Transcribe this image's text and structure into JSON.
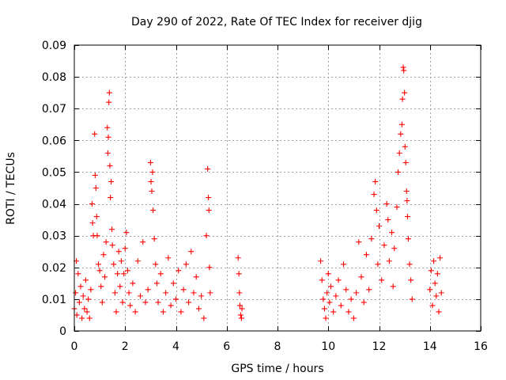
{
  "chart_data": {
    "type": "scatter",
    "title": "Day 290 of 2022, Rate Of TEC Index for receiver djig",
    "xlabel": "GPS time / hours",
    "ylabel": "ROTI / TECUs",
    "xlim": [
      0,
      16
    ],
    "ylim": [
      0,
      0.09
    ],
    "xticks": [
      0,
      2,
      4,
      6,
      8,
      10,
      12,
      14,
      16
    ],
    "xtick_labels": [
      "0",
      "2",
      "4",
      "6",
      "8",
      "10",
      "12",
      "14",
      "16"
    ],
    "yticks": [
      0,
      0.01,
      0.02,
      0.03,
      0.04,
      0.05,
      0.06,
      0.07,
      0.08,
      0.09
    ],
    "ytick_labels": [
      "0",
      "0.01",
      "0.02",
      "0.03",
      "0.04",
      "0.05",
      "0.06",
      "0.07",
      "0.08",
      "0.09"
    ],
    "grid": true,
    "marker": "+",
    "marker_color": "#ff0000",
    "series": [
      {
        "name": "ROTI",
        "points": [
          [
            0.0,
            0.007
          ],
          [
            0.05,
            0.012
          ],
          [
            0.08,
            0.022
          ],
          [
            0.1,
            0.005
          ],
          [
            0.15,
            0.018
          ],
          [
            0.2,
            0.009
          ],
          [
            0.25,
            0.014
          ],
          [
            0.3,
            0.004
          ],
          [
            0.35,
            0.011
          ],
          [
            0.4,
            0.007
          ],
          [
            0.45,
            0.016
          ],
          [
            0.5,
            0.006
          ],
          [
            0.55,
            0.01
          ],
          [
            0.6,
            0.004
          ],
          [
            0.65,
            0.013
          ],
          [
            0.7,
            0.04
          ],
          [
            0.72,
            0.034
          ],
          [
            0.75,
            0.03
          ],
          [
            0.8,
            0.062
          ],
          [
            0.82,
            0.049
          ],
          [
            0.85,
            0.045
          ],
          [
            0.88,
            0.036
          ],
          [
            0.9,
            0.03
          ],
          [
            0.95,
            0.021
          ],
          [
            1.0,
            0.019
          ],
          [
            1.05,
            0.014
          ],
          [
            1.1,
            0.009
          ],
          [
            1.15,
            0.024
          ],
          [
            1.2,
            0.017
          ],
          [
            1.25,
            0.028
          ],
          [
            1.3,
            0.064
          ],
          [
            1.32,
            0.056
          ],
          [
            1.34,
            0.061
          ],
          [
            1.36,
            0.072
          ],
          [
            1.38,
            0.075
          ],
          [
            1.4,
            0.052
          ],
          [
            1.42,
            0.042
          ],
          [
            1.45,
            0.047
          ],
          [
            1.48,
            0.032
          ],
          [
            1.5,
            0.027
          ],
          [
            1.55,
            0.021
          ],
          [
            1.6,
            0.012
          ],
          [
            1.65,
            0.006
          ],
          [
            1.7,
            0.018
          ],
          [
            1.75,
            0.025
          ],
          [
            1.8,
            0.014
          ],
          [
            1.85,
            0.022
          ],
          [
            1.9,
            0.009
          ],
          [
            1.95,
            0.018
          ],
          [
            2.0,
            0.026
          ],
          [
            2.05,
            0.031
          ],
          [
            2.1,
            0.019
          ],
          [
            2.15,
            0.012
          ],
          [
            2.2,
            0.008
          ],
          [
            2.3,
            0.015
          ],
          [
            2.4,
            0.006
          ],
          [
            2.5,
            0.022
          ],
          [
            2.6,
            0.011
          ],
          [
            2.7,
            0.028
          ],
          [
            2.8,
            0.009
          ],
          [
            2.9,
            0.013
          ],
          [
            3.0,
            0.053
          ],
          [
            3.02,
            0.047
          ],
          [
            3.05,
            0.044
          ],
          [
            3.08,
            0.05
          ],
          [
            3.1,
            0.038
          ],
          [
            3.15,
            0.029
          ],
          [
            3.2,
            0.021
          ],
          [
            3.25,
            0.015
          ],
          [
            3.3,
            0.009
          ],
          [
            3.4,
            0.018
          ],
          [
            3.5,
            0.006
          ],
          [
            3.6,
            0.012
          ],
          [
            3.7,
            0.023
          ],
          [
            3.8,
            0.008
          ],
          [
            3.9,
            0.015
          ],
          [
            4.0,
            0.01
          ],
          [
            4.1,
            0.019
          ],
          [
            4.2,
            0.006
          ],
          [
            4.3,
            0.013
          ],
          [
            4.4,
            0.021
          ],
          [
            4.5,
            0.009
          ],
          [
            4.6,
            0.025
          ],
          [
            4.7,
            0.012
          ],
          [
            4.8,
            0.017
          ],
          [
            4.9,
            0.007
          ],
          [
            5.0,
            0.011
          ],
          [
            5.1,
            0.004
          ],
          [
            5.2,
            0.03
          ],
          [
            5.25,
            0.051
          ],
          [
            5.28,
            0.042
          ],
          [
            5.3,
            0.038
          ],
          [
            5.32,
            0.02
          ],
          [
            5.35,
            0.012
          ],
          [
            6.45,
            0.023
          ],
          [
            6.48,
            0.018
          ],
          [
            6.5,
            0.012
          ],
          [
            6.52,
            0.008
          ],
          [
            6.55,
            0.005
          ],
          [
            6.58,
            0.004
          ],
          [
            6.6,
            0.007
          ],
          [
            9.7,
            0.022
          ],
          [
            9.75,
            0.016
          ],
          [
            9.8,
            0.01
          ],
          [
            9.85,
            0.007
          ],
          [
            9.9,
            0.004
          ],
          [
            9.95,
            0.012
          ],
          [
            10.0,
            0.018
          ],
          [
            10.05,
            0.009
          ],
          [
            10.1,
            0.014
          ],
          [
            10.2,
            0.006
          ],
          [
            10.3,
            0.011
          ],
          [
            10.4,
            0.016
          ],
          [
            10.5,
            0.008
          ],
          [
            10.6,
            0.021
          ],
          [
            10.7,
            0.013
          ],
          [
            10.8,
            0.006
          ],
          [
            10.9,
            0.01
          ],
          [
            11.0,
            0.004
          ],
          [
            11.1,
            0.012
          ],
          [
            11.2,
            0.028
          ],
          [
            11.3,
            0.017
          ],
          [
            11.4,
            0.009
          ],
          [
            11.5,
            0.024
          ],
          [
            11.6,
            0.013
          ],
          [
            11.7,
            0.029
          ],
          [
            11.8,
            0.043
          ],
          [
            11.85,
            0.047
          ],
          [
            11.9,
            0.038
          ],
          [
            11.95,
            0.021
          ],
          [
            12.0,
            0.033
          ],
          [
            12.1,
            0.016
          ],
          [
            12.2,
            0.027
          ],
          [
            12.3,
            0.04
          ],
          [
            12.35,
            0.035
          ],
          [
            12.4,
            0.022
          ],
          [
            12.5,
            0.031
          ],
          [
            12.55,
            0.014
          ],
          [
            12.6,
            0.026
          ],
          [
            12.7,
            0.039
          ],
          [
            12.75,
            0.05
          ],
          [
            12.8,
            0.056
          ],
          [
            12.85,
            0.062
          ],
          [
            12.9,
            0.065
          ],
          [
            12.92,
            0.073
          ],
          [
            12.95,
            0.083
          ],
          [
            12.97,
            0.082
          ],
          [
            13.0,
            0.075
          ],
          [
            13.02,
            0.058
          ],
          [
            13.05,
            0.053
          ],
          [
            13.08,
            0.044
          ],
          [
            13.1,
            0.041
          ],
          [
            13.12,
            0.036
          ],
          [
            13.15,
            0.029
          ],
          [
            13.2,
            0.021
          ],
          [
            13.25,
            0.016
          ],
          [
            13.3,
            0.01
          ],
          [
            14.0,
            0.013
          ],
          [
            14.05,
            0.019
          ],
          [
            14.1,
            0.008
          ],
          [
            14.15,
            0.022
          ],
          [
            14.2,
            0.015
          ],
          [
            14.25,
            0.011
          ],
          [
            14.3,
            0.018
          ],
          [
            14.35,
            0.006
          ],
          [
            14.4,
            0.023
          ],
          [
            14.45,
            0.012
          ]
        ]
      }
    ]
  }
}
